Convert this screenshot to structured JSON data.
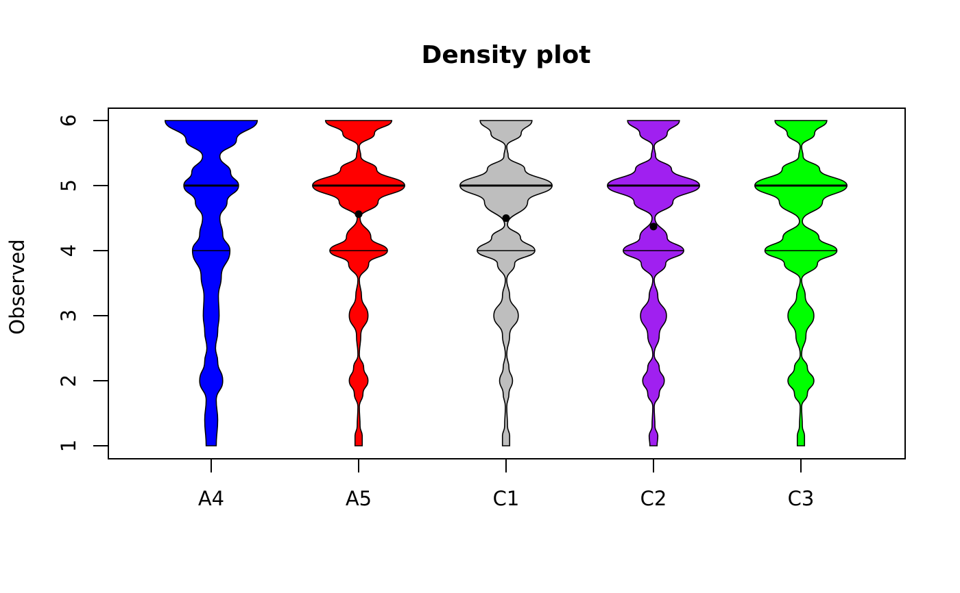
{
  "chart_data": {
    "type": "violin",
    "title": "Density plot",
    "xlabel": "",
    "ylabel": "Observed",
    "ylim": [
      1,
      6
    ],
    "yticks": [
      1,
      2,
      3,
      4,
      5,
      6
    ],
    "grid": false,
    "legend": "none",
    "categories": [
      "A4",
      "A5",
      "C1",
      "C2",
      "C3"
    ],
    "series": [
      {
        "category": "A4",
        "color": "#0000FF",
        "median": 5,
        "q1": 4,
        "q3": 5,
        "mean": null,
        "density": [
          [
            1.0,
            0.07
          ],
          [
            1.4,
            0.09
          ],
          [
            1.7,
            0.07
          ],
          [
            2.0,
            0.16
          ],
          [
            2.3,
            0.09
          ],
          [
            2.5,
            0.06
          ],
          [
            2.75,
            0.09
          ],
          [
            3.0,
            0.11
          ],
          [
            3.3,
            0.1
          ],
          [
            3.6,
            0.14
          ],
          [
            4.0,
            0.26
          ],
          [
            4.25,
            0.16
          ],
          [
            4.5,
            0.12
          ],
          [
            4.75,
            0.22
          ],
          [
            5.0,
            0.38
          ],
          [
            5.2,
            0.27
          ],
          [
            5.45,
            0.12
          ],
          [
            5.7,
            0.35
          ],
          [
            6.0,
            0.64
          ]
        ]
      },
      {
        "category": "A5",
        "color": "#FF0000",
        "median": 5,
        "q1": 4,
        "q3": 5,
        "mean": 4.56,
        "density": [
          [
            1.0,
            0.05
          ],
          [
            1.15,
            0.05
          ],
          [
            1.3,
            0.02
          ],
          [
            1.6,
            0.01
          ],
          [
            1.8,
            0.06
          ],
          [
            2.0,
            0.13
          ],
          [
            2.2,
            0.07
          ],
          [
            2.4,
            0.01
          ],
          [
            2.7,
            0.03
          ],
          [
            3.0,
            0.13
          ],
          [
            3.3,
            0.04
          ],
          [
            3.55,
            0.01
          ],
          [
            3.8,
            0.14
          ],
          [
            4.0,
            0.4
          ],
          [
            4.2,
            0.17
          ],
          [
            4.5,
            0.02
          ],
          [
            4.75,
            0.27
          ],
          [
            5.0,
            0.64
          ],
          [
            5.25,
            0.25
          ],
          [
            5.45,
            0.03
          ],
          [
            5.6,
            0.01
          ],
          [
            5.8,
            0.22
          ],
          [
            6.0,
            0.46
          ]
        ]
      },
      {
        "category": "C1",
        "color": "#BEBEBE",
        "median": 5,
        "q1": 4,
        "q3": 5,
        "mean": 4.5,
        "density": [
          [
            1.0,
            0.05
          ],
          [
            1.15,
            0.05
          ],
          [
            1.3,
            0.02
          ],
          [
            1.6,
            0.01
          ],
          [
            1.8,
            0.04
          ],
          [
            2.0,
            0.09
          ],
          [
            2.2,
            0.04
          ],
          [
            2.4,
            0.01
          ],
          [
            2.7,
            0.05
          ],
          [
            3.0,
            0.17
          ],
          [
            3.3,
            0.05
          ],
          [
            3.55,
            0.01
          ],
          [
            3.8,
            0.12
          ],
          [
            4.0,
            0.4
          ],
          [
            4.2,
            0.2
          ],
          [
            4.4,
            0.02
          ],
          [
            4.75,
            0.3
          ],
          [
            5.0,
            0.64
          ],
          [
            5.25,
            0.26
          ],
          [
            5.45,
            0.03
          ],
          [
            5.6,
            0.01
          ],
          [
            5.8,
            0.21
          ],
          [
            6.0,
            0.36
          ]
        ]
      },
      {
        "category": "C2",
        "color": "#A020F0",
        "median": 5,
        "q1": 4,
        "q3": 5,
        "mean": 4.37,
        "density": [
          [
            1.0,
            0.05
          ],
          [
            1.15,
            0.06
          ],
          [
            1.3,
            0.02
          ],
          [
            1.6,
            0.01
          ],
          [
            1.8,
            0.08
          ],
          [
            2.0,
            0.15
          ],
          [
            2.2,
            0.08
          ],
          [
            2.4,
            0.01
          ],
          [
            2.7,
            0.08
          ],
          [
            3.0,
            0.18
          ],
          [
            3.3,
            0.06
          ],
          [
            3.55,
            0.01
          ],
          [
            3.8,
            0.17
          ],
          [
            4.0,
            0.42
          ],
          [
            4.2,
            0.19
          ],
          [
            4.5,
            0.02
          ],
          [
            4.75,
            0.27
          ],
          [
            5.0,
            0.64
          ],
          [
            5.25,
            0.25
          ],
          [
            5.45,
            0.03
          ],
          [
            5.6,
            0.01
          ],
          [
            5.8,
            0.19
          ],
          [
            6.0,
            0.36
          ]
        ]
      },
      {
        "category": "C3",
        "color": "#00FF00",
        "median": 5,
        "q1": 4,
        "q3": 5,
        "mean": null,
        "density": [
          [
            1.0,
            0.05
          ],
          [
            1.15,
            0.05
          ],
          [
            1.3,
            0.02
          ],
          [
            1.6,
            0.01
          ],
          [
            1.8,
            0.09
          ],
          [
            2.0,
            0.18
          ],
          [
            2.2,
            0.09
          ],
          [
            2.4,
            0.01
          ],
          [
            2.7,
            0.07
          ],
          [
            3.0,
            0.18
          ],
          [
            3.3,
            0.06
          ],
          [
            3.55,
            0.01
          ],
          [
            3.8,
            0.23
          ],
          [
            4.0,
            0.5
          ],
          [
            4.2,
            0.25
          ],
          [
            4.45,
            0.02
          ],
          [
            4.75,
            0.3
          ],
          [
            5.0,
            0.64
          ],
          [
            5.25,
            0.26
          ],
          [
            5.45,
            0.03
          ],
          [
            5.6,
            0.01
          ],
          [
            5.8,
            0.19
          ],
          [
            6.0,
            0.36
          ]
        ]
      }
    ]
  }
}
